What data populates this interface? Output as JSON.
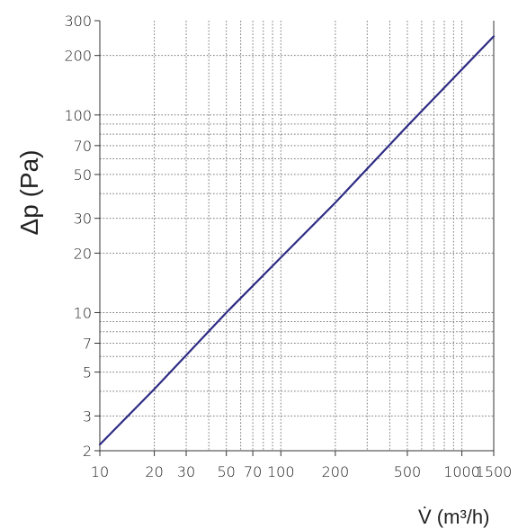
{
  "chart_data": {
    "type": "line",
    "title": "",
    "xlabel": "V̇ (m³/h)",
    "ylabel": "Δp (Pa)",
    "x_scale": "log",
    "y_scale": "log",
    "xlim": [
      10,
      1500
    ],
    "ylim": [
      2,
      300
    ],
    "x_ticks": [
      10,
      20,
      30,
      50,
      70,
      100,
      200,
      500,
      1000,
      1500
    ],
    "x_tick_labels": [
      "10",
      "20",
      "30",
      "50",
      "70",
      "100",
      "200",
      "500",
      "1000",
      "1500"
    ],
    "y_ticks": [
      2,
      3,
      5,
      7,
      10,
      20,
      30,
      50,
      70,
      100,
      200,
      300
    ],
    "y_tick_labels": [
      "2",
      "3",
      "5",
      "7",
      "10",
      "20",
      "30",
      "50",
      "70",
      "100",
      "200",
      "300"
    ],
    "x_grid_values": [
      20,
      30,
      40,
      50,
      60,
      70,
      80,
      90,
      100,
      200,
      300,
      400,
      500,
      600,
      700,
      800,
      900,
      1000
    ],
    "y_grid_values": [
      3,
      4,
      5,
      6,
      7,
      8,
      9,
      10,
      20,
      30,
      40,
      50,
      60,
      70,
      80,
      90,
      100,
      200
    ],
    "grid": true,
    "legend": "none",
    "series": [
      {
        "color": "#2e2c84",
        "x": [
          10,
          20,
          50,
          100,
          200,
          500,
          1000,
          1500
        ],
        "y": [
          2.15,
          4.1,
          10,
          19,
          36,
          88,
          170,
          250
        ]
      }
    ]
  }
}
